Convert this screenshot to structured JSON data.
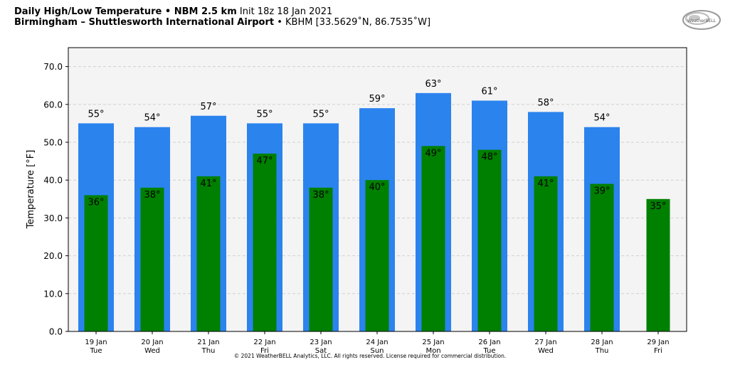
{
  "header": {
    "title_bold": "Daily High/Low Temperature • NBM 2.5 km",
    "title_rest": "Init 18z 18 Jan 2021",
    "location_bold": "Birmingham – Shuttlesworth International Airport",
    "location_rest": "• KBHM [33.5629˚N, 86.7535˚W]"
  },
  "logo": {
    "text": "WeatherBELL",
    "icon": "weatherbell-swirl-logo"
  },
  "copyright": "© 2021 WeatherBELL Analytics, LLC. All rights reserved. License required for commercial distribution.",
  "colors": {
    "high": "#2b83ee",
    "low": "#008000",
    "plot_bg": "#f4f4f4"
  },
  "chart_data": {
    "type": "bar",
    "ylabel": "Temperature [°F]",
    "xlabel": "",
    "ylim": [
      0,
      75
    ],
    "yticks": [
      "0.0",
      "10.0",
      "20.0",
      "30.0",
      "40.0",
      "50.0",
      "60.0",
      "70.0"
    ],
    "grid": "horizontal dashed",
    "categories": [
      "19 Jan",
      "20 Jan",
      "21 Jan",
      "22 Jan",
      "23 Jan",
      "24 Jan",
      "25 Jan",
      "26 Jan",
      "27 Jan",
      "28 Jan",
      "29 Jan"
    ],
    "weekdays": [
      "Tue",
      "Wed",
      "Thu",
      "Fri",
      "Sat",
      "Sun",
      "Mon",
      "Tue",
      "Wed",
      "Thu",
      "Fri"
    ],
    "series": [
      {
        "key": "high",
        "values": [
          55,
          54,
          57,
          55,
          55,
          59,
          63,
          61,
          58,
          54,
          null
        ],
        "labels": [
          "55°",
          "54°",
          "57°",
          "55°",
          "55°",
          "59°",
          "63°",
          "61°",
          "58°",
          "54°",
          ""
        ]
      },
      {
        "key": "low",
        "values": [
          36,
          38,
          41,
          47,
          38,
          40,
          49,
          48,
          41,
          39,
          35
        ],
        "labels": [
          "36°",
          "38°",
          "41°",
          "47°",
          "38°",
          "40°",
          "49°",
          "48°",
          "41°",
          "39°",
          "35°"
        ]
      }
    ]
  }
}
